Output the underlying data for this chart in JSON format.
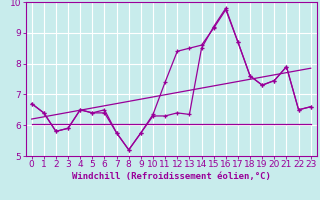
{
  "bg_color": "#c8ecec",
  "grid_color": "#ffffff",
  "line_color": "#990099",
  "xlabel": "Windchill (Refroidissement éolien,°C)",
  "xlim": [
    -0.5,
    23.5
  ],
  "ylim": [
    5,
    10
  ],
  "yticks": [
    5,
    6,
    7,
    8,
    9,
    10
  ],
  "xticks": [
    0,
    1,
    2,
    3,
    4,
    5,
    6,
    7,
    8,
    9,
    10,
    11,
    12,
    13,
    14,
    15,
    16,
    17,
    18,
    19,
    20,
    21,
    22,
    23
  ],
  "series1_x": [
    0,
    1,
    2,
    3,
    4,
    5,
    6,
    7,
    8,
    9,
    10,
    11,
    12,
    13,
    14,
    15,
    16,
    17,
    18,
    19,
    20,
    21,
    22,
    23
  ],
  "series1_y": [
    6.7,
    6.4,
    5.8,
    5.9,
    6.5,
    6.4,
    6.5,
    5.75,
    5.2,
    5.75,
    6.3,
    6.3,
    6.4,
    6.35,
    8.5,
    9.2,
    9.8,
    8.7,
    7.6,
    7.3,
    7.45,
    7.9,
    6.5,
    6.6
  ],
  "series2_x": [
    0,
    1,
    2,
    3,
    4,
    5,
    6,
    7,
    8,
    9,
    10,
    11,
    12,
    13,
    14,
    15,
    16,
    17,
    18,
    19,
    20,
    21,
    22,
    23
  ],
  "series2_y": [
    6.7,
    6.4,
    5.8,
    5.9,
    6.5,
    6.4,
    6.4,
    5.75,
    5.2,
    5.75,
    6.35,
    7.4,
    8.4,
    8.5,
    8.6,
    9.15,
    9.75,
    8.7,
    7.6,
    7.3,
    7.45,
    7.9,
    6.5,
    6.6
  ],
  "trend1_x": [
    0,
    23
  ],
  "trend1_y": [
    6.05,
    6.05
  ],
  "trend2_x": [
    0,
    23
  ],
  "trend2_y": [
    6.2,
    7.85
  ],
  "xlabel_fontsize": 6.5,
  "tick_fontsize": 6.5
}
